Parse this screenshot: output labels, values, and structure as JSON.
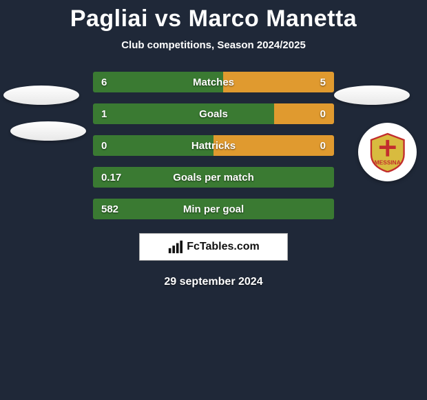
{
  "background_color": "#1f2838",
  "title": {
    "text": "Pagliai vs Marco Manetta",
    "color": "#ffffff",
    "fontsize": 34
  },
  "subtitle": {
    "text": "Club competitions, Season 2024/2025",
    "color": "#ffffff",
    "fontsize": 15
  },
  "left_color": "#3a7a32",
  "right_color": "#e09a2f",
  "label_color": "#ffffff",
  "value_color": "#ffffff",
  "bar_label_fontsize": 15,
  "bar_value_fontsize": 15,
  "bars": [
    {
      "label": "Matches",
      "left_val": "6",
      "right_val": "5",
      "left_pct": 54,
      "right_pct": 46
    },
    {
      "label": "Goals",
      "left_val": "1",
      "right_val": "0",
      "left_pct": 75,
      "right_pct": 25
    },
    {
      "label": "Hattricks",
      "left_val": "0",
      "right_val": "0",
      "left_pct": 50,
      "right_pct": 50
    },
    {
      "label": "Goals per match",
      "left_val": "0.17",
      "right_val": "",
      "left_pct": 100,
      "right_pct": 0
    },
    {
      "label": "Min per goal",
      "left_val": "582",
      "right_val": "",
      "left_pct": 100,
      "right_pct": 0
    }
  ],
  "brand": {
    "text": "FcTables.com",
    "icon": "bar-chart-icon"
  },
  "date": {
    "text": "29 september 2024",
    "color": "#ffffff",
    "fontsize": 16
  },
  "club_logo": {
    "name": "ACR Messina",
    "primary": "#d8bb3f",
    "accent": "#c22d2d"
  }
}
